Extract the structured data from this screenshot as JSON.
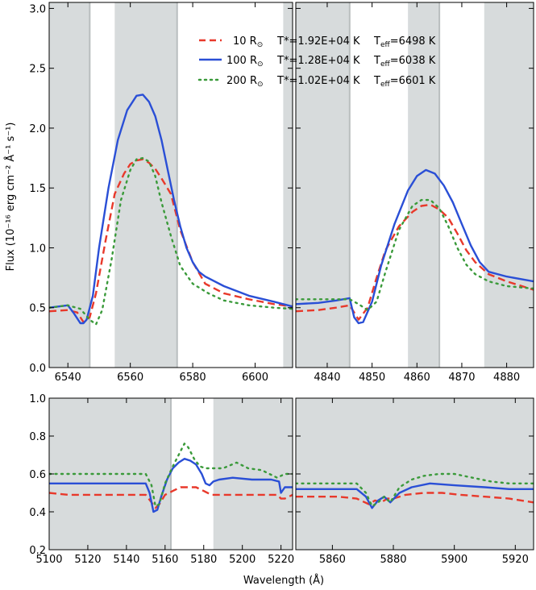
{
  "figure": {
    "ylabel": "Flux (10⁻¹⁶ erg cm⁻² Å⁻¹ s⁻¹)",
    "xlabel": "Wavelength (Å)"
  },
  "legend": [
    {
      "radius": "10 R",
      "sun": "⊙",
      "tstar": "T*=1.92E+04 K",
      "teff_pre": "T",
      "teff_sub": "eff",
      "teff_val": "=6498 K",
      "color": "#e8392b",
      "style": "dashed"
    },
    {
      "radius": "100 R",
      "sun": "⊙",
      "tstar": "T*=1.28E+04 K",
      "teff_pre": "T",
      "teff_sub": "eff",
      "teff_val": "=6038 K",
      "color": "#2a4fd6",
      "style": "solid"
    },
    {
      "radius": "200 R",
      "sun": "⊙",
      "tstar": "T*=1.02E+04 K",
      "teff_pre": "T",
      "teff_sub": "eff",
      "teff_val": "=6601 K",
      "color": "#3a9a3a",
      "style": "dotted"
    }
  ],
  "chart_data": [
    {
      "type": "line",
      "panel": "top-left",
      "xlim": [
        6534,
        6612
      ],
      "ylim": [
        0,
        3.05
      ],
      "xticks": [
        6540,
        6560,
        6580,
        6600
      ],
      "yticks": [
        0.0,
        0.5,
        1.0,
        1.5,
        2.0,
        2.5,
        3.0
      ],
      "shaded": [
        [
          6534,
          6547
        ],
        [
          6555,
          6575
        ],
        [
          6609,
          6612
        ]
      ],
      "series": [
        {
          "name": "10 R⊙",
          "color": "#e8392b",
          "style": "dashed",
          "x": [
            6534,
            6540,
            6543,
            6545,
            6547,
            6549,
            6552,
            6555,
            6558,
            6560,
            6562,
            6564,
            6566,
            6568,
            6570,
            6573,
            6576,
            6580,
            6584,
            6590,
            6598,
            6606,
            6612
          ],
          "y": [
            0.47,
            0.48,
            0.46,
            0.38,
            0.42,
            0.62,
            1.05,
            1.45,
            1.62,
            1.7,
            1.73,
            1.74,
            1.71,
            1.66,
            1.58,
            1.45,
            1.15,
            0.88,
            0.7,
            0.62,
            0.57,
            0.53,
            0.51
          ]
        },
        {
          "name": "100 R⊙",
          "color": "#2a4fd6",
          "style": "solid",
          "x": [
            6534,
            6540,
            6542,
            6544,
            6545,
            6546,
            6548,
            6550,
            6553,
            6556,
            6559,
            6562,
            6564,
            6566,
            6568,
            6570,
            6572,
            6574,
            6576,
            6578,
            6580,
            6582,
            6584,
            6590,
            6598,
            6606,
            6612
          ],
          "y": [
            0.5,
            0.52,
            0.45,
            0.37,
            0.37,
            0.4,
            0.6,
            1.0,
            1.5,
            1.9,
            2.15,
            2.27,
            2.28,
            2.22,
            2.1,
            1.9,
            1.65,
            1.4,
            1.18,
            1.0,
            0.88,
            0.8,
            0.76,
            0.68,
            0.6,
            0.55,
            0.51
          ]
        },
        {
          "name": "200 R⊙",
          "color": "#3a9a3a",
          "style": "dotted",
          "x": [
            6534,
            6540,
            6544,
            6547,
            6549,
            6551,
            6554,
            6557,
            6560,
            6562,
            6564,
            6566,
            6568,
            6570,
            6573,
            6576,
            6580,
            6585,
            6590,
            6598,
            6606,
            6612
          ],
          "y": [
            0.5,
            0.52,
            0.49,
            0.4,
            0.36,
            0.48,
            0.9,
            1.4,
            1.65,
            1.74,
            1.75,
            1.72,
            1.6,
            1.38,
            1.1,
            0.85,
            0.7,
            0.62,
            0.56,
            0.52,
            0.5,
            0.49
          ]
        }
      ]
    },
    {
      "type": "line",
      "panel": "top-right",
      "xlim": [
        4833,
        4886
      ],
      "ylim": [
        0,
        3.05
      ],
      "xticks": [
        4840,
        4850,
        4860,
        4870,
        4880
      ],
      "yticks": [
        0.0,
        0.5,
        1.0,
        1.5,
        2.0,
        2.5,
        3.0
      ],
      "shaded": [
        [
          4833,
          4845
        ],
        [
          4858,
          4865
        ],
        [
          4875,
          4886
        ]
      ],
      "series": [
        {
          "name": "10 R⊙",
          "color": "#e8392b",
          "style": "dashed",
          "x": [
            4833,
            4838,
            4842,
            4845,
            4846,
            4847,
            4849,
            4851,
            4853,
            4856,
            4859,
            4861,
            4863,
            4865,
            4867,
            4869,
            4871,
            4873,
            4876,
            4880,
            4886
          ],
          "y": [
            0.47,
            0.48,
            0.5,
            0.52,
            0.46,
            0.4,
            0.5,
            0.75,
            0.98,
            1.18,
            1.3,
            1.35,
            1.36,
            1.32,
            1.25,
            1.12,
            0.98,
            0.88,
            0.78,
            0.72,
            0.65
          ]
        },
        {
          "name": "100 R⊙",
          "color": "#2a4fd6",
          "style": "solid",
          "x": [
            4833,
            4838,
            4842,
            4845,
            4846,
            4847,
            4848,
            4850,
            4852,
            4855,
            4858,
            4860,
            4862,
            4864,
            4866,
            4868,
            4870,
            4872,
            4874,
            4876,
            4880,
            4886
          ],
          "y": [
            0.53,
            0.54,
            0.56,
            0.58,
            0.42,
            0.37,
            0.38,
            0.55,
            0.85,
            1.2,
            1.48,
            1.6,
            1.65,
            1.62,
            1.52,
            1.38,
            1.2,
            1.02,
            0.88,
            0.8,
            0.76,
            0.72
          ]
        },
        {
          "name": "200 R⊙",
          "color": "#3a9a3a",
          "style": "dotted",
          "x": [
            4833,
            4838,
            4842,
            4845,
            4847,
            4849,
            4851,
            4853,
            4856,
            4859,
            4861,
            4863,
            4865,
            4867,
            4869,
            4871,
            4873,
            4876,
            4880,
            4886
          ],
          "y": [
            0.57,
            0.57,
            0.57,
            0.57,
            0.53,
            0.48,
            0.55,
            0.8,
            1.15,
            1.35,
            1.4,
            1.4,
            1.33,
            1.18,
            1.0,
            0.86,
            0.78,
            0.72,
            0.68,
            0.66
          ]
        }
      ]
    },
    {
      "type": "line",
      "panel": "bottom-left",
      "xlim": [
        5100,
        5226
      ],
      "ylim": [
        0.2,
        1.0
      ],
      "xticks": [
        5100,
        5120,
        5140,
        5160,
        5180,
        5200,
        5220
      ],
      "yticks": [
        0.2,
        0.4,
        0.6,
        0.8,
        1.0
      ],
      "shaded": [
        [
          5100,
          5163
        ],
        [
          5185,
          5226
        ]
      ],
      "series": [
        {
          "name": "10 R⊙",
          "color": "#e8392b",
          "style": "dashed",
          "x": [
            5100,
            5110,
            5120,
            5130,
            5140,
            5150,
            5153,
            5155,
            5157,
            5160,
            5164,
            5168,
            5172,
            5176,
            5180,
            5184,
            5190,
            5200,
            5210,
            5218,
            5220,
            5222,
            5226
          ],
          "y": [
            0.5,
            0.49,
            0.49,
            0.49,
            0.49,
            0.49,
            0.45,
            0.42,
            0.44,
            0.49,
            0.51,
            0.53,
            0.53,
            0.53,
            0.51,
            0.49,
            0.49,
            0.49,
            0.49,
            0.49,
            0.47,
            0.47,
            0.49
          ]
        },
        {
          "name": "100 R⊙",
          "color": "#2a4fd6",
          "style": "solid",
          "x": [
            5100,
            5110,
            5120,
            5130,
            5140,
            5150,
            5152,
            5154,
            5156,
            5158,
            5161,
            5164,
            5167,
            5170,
            5173,
            5176,
            5179,
            5181,
            5183,
            5185,
            5188,
            5195,
            5205,
            5215,
            5219,
            5220,
            5222,
            5226
          ],
          "y": [
            0.55,
            0.55,
            0.55,
            0.55,
            0.55,
            0.55,
            0.5,
            0.4,
            0.41,
            0.48,
            0.57,
            0.63,
            0.66,
            0.68,
            0.67,
            0.65,
            0.6,
            0.55,
            0.54,
            0.56,
            0.57,
            0.58,
            0.57,
            0.57,
            0.56,
            0.5,
            0.53,
            0.53
          ]
        },
        {
          "name": "200 R⊙",
          "color": "#3a9a3a",
          "style": "dotted",
          "x": [
            5100,
            5110,
            5120,
            5130,
            5140,
            5150,
            5153,
            5155,
            5157,
            5160,
            5164,
            5168,
            5170,
            5172,
            5175,
            5178,
            5181,
            5185,
            5190,
            5197,
            5203,
            5210,
            5218,
            5222,
            5226
          ],
          "y": [
            0.6,
            0.6,
            0.6,
            0.6,
            0.6,
            0.6,
            0.54,
            0.43,
            0.44,
            0.55,
            0.64,
            0.72,
            0.76,
            0.74,
            0.68,
            0.64,
            0.63,
            0.63,
            0.63,
            0.66,
            0.63,
            0.62,
            0.58,
            0.6,
            0.6
          ]
        }
      ]
    },
    {
      "type": "line",
      "panel": "bottom-right",
      "xlim": [
        5848,
        5926
      ],
      "ylim": [
        0.2,
        1.0
      ],
      "xticks": [
        5860,
        5880,
        5900,
        5920
      ],
      "yticks": [
        0.2,
        0.4,
        0.6,
        0.8,
        1.0
      ],
      "shaded": [
        [
          5848,
          5926
        ]
      ],
      "series": [
        {
          "name": "10 R⊙",
          "color": "#e8392b",
          "style": "dashed",
          "x": [
            5848,
            5855,
            5862,
            5868,
            5872,
            5874,
            5876,
            5878,
            5880,
            5884,
            5890,
            5896,
            5902,
            5910,
            5918,
            5926
          ],
          "y": [
            0.48,
            0.48,
            0.48,
            0.47,
            0.44,
            0.46,
            0.45,
            0.47,
            0.47,
            0.49,
            0.5,
            0.5,
            0.49,
            0.48,
            0.47,
            0.45
          ]
        },
        {
          "name": "100 R⊙",
          "color": "#2a4fd6",
          "style": "solid",
          "x": [
            5848,
            5855,
            5862,
            5868,
            5871,
            5873,
            5875,
            5877,
            5879,
            5882,
            5886,
            5892,
            5900,
            5910,
            5918,
            5926
          ],
          "y": [
            0.52,
            0.52,
            0.52,
            0.52,
            0.48,
            0.42,
            0.46,
            0.48,
            0.45,
            0.5,
            0.53,
            0.55,
            0.54,
            0.53,
            0.52,
            0.52
          ]
        },
        {
          "name": "200 R⊙",
          "color": "#3a9a3a",
          "style": "dotted",
          "x": [
            5848,
            5855,
            5862,
            5868,
            5871,
            5873,
            5875,
            5877,
            5879,
            5882,
            5886,
            5890,
            5895,
            5900,
            5906,
            5912,
            5918,
            5926
          ],
          "y": [
            0.55,
            0.55,
            0.55,
            0.55,
            0.5,
            0.43,
            0.45,
            0.48,
            0.45,
            0.53,
            0.57,
            0.59,
            0.6,
            0.6,
            0.58,
            0.56,
            0.55,
            0.55
          ]
        }
      ]
    }
  ]
}
